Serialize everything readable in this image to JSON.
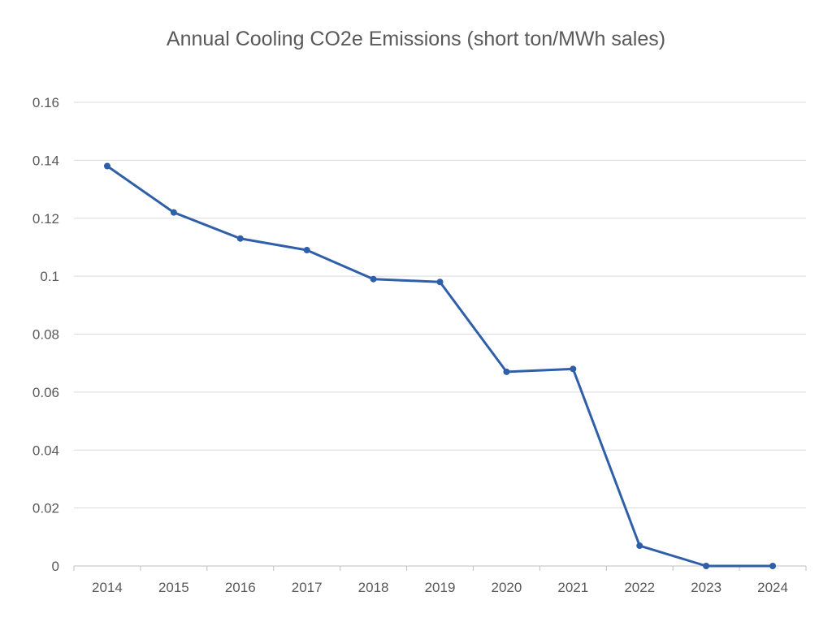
{
  "chart_data": {
    "type": "line",
    "title": "Annual Cooling CO2e Emissions (short ton/MWh sales)",
    "xlabel": "",
    "ylabel": "",
    "x": [
      "2014",
      "2015",
      "2016",
      "2017",
      "2018",
      "2019",
      "2020",
      "2021",
      "2022",
      "2023",
      "2024"
    ],
    "series": [
      {
        "values": [
          0.138,
          0.122,
          0.113,
          0.109,
          0.099,
          0.098,
          0.067,
          0.068,
          0.007,
          0.0,
          0.0
        ],
        "color": "#2f5fa8"
      }
    ],
    "yticks": [
      "0",
      "0.02",
      "0.04",
      "0.06",
      "0.08",
      "0.1",
      "0.12",
      "0.14",
      "0.16"
    ],
    "ylim": [
      0,
      0.16
    ],
    "grid": true,
    "legend": "none",
    "marker": "circle",
    "colors": {
      "gridline": "#d9d9d9",
      "axis": "#bfbfbf",
      "tick_text": "#595959",
      "title_text": "#595959"
    }
  }
}
